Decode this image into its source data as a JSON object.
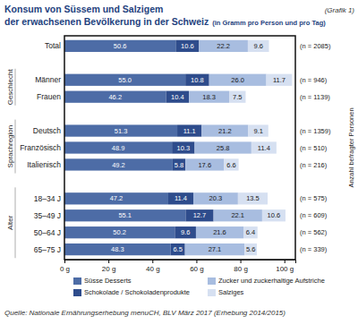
{
  "chart_data": {
    "type": "bar",
    "orientation": "horizontal",
    "stacked": true,
    "data_labels": true,
    "grid": false,
    "legend": "bottom",
    "title": "Konsum von Süssem und Salzigem der erwachsenen Bevölkerung in der Schweiz",
    "subtitle": "(in Gramm pro Person und pro Tag)",
    "figure_label": "(Grafik 1)",
    "source": "Quelle: Nationale Ernährungserhebung menuCH, BLV März 2017 (Erhebung 2014/2015)",
    "categories": [
      "Total",
      "Männer",
      "Frauen",
      "Deutsch",
      "Französisch",
      "Italienisch",
      "18–34 J",
      "35–49 J",
      "50–64 J",
      "65–75 J"
    ],
    "groups": [
      {
        "label": "Geschlecht",
        "categories": [
          "Männer",
          "Frauen"
        ]
      },
      {
        "label": "Sprachregion",
        "categories": [
          "Deutsch",
          "Französisch",
          "Italienisch"
        ]
      },
      {
        "label": "Alter",
        "categories": [
          "18–34 J",
          "35–49 J",
          "50–64 J",
          "65–75 J"
        ]
      }
    ],
    "sample_size_title": "Anzahl befragter Personen",
    "sample_sizes": [
      "(n = 2085)",
      "(n = 946)",
      "(n = 1139)",
      "(n = 1359)",
      "(n = 510)",
      "(n = 216)",
      "(n = 575)",
      "(n = 609)",
      "(n = 562)",
      "(n = 339)"
    ],
    "xlim": [
      0,
      105
    ],
    "xticks": [
      {
        "value": 0,
        "label": "0 g"
      },
      {
        "value": 20,
        "label": "20 g"
      },
      {
        "value": 40,
        "label": "40 g"
      },
      {
        "value": 60,
        "label": "60 g"
      },
      {
        "value": 80,
        "label": "80 g"
      },
      {
        "value": 100,
        "label": "100 g"
      }
    ],
    "series": [
      {
        "name": "Süsse Desserts",
        "color": "#4d6ca6",
        "values": [
          50.6,
          55.0,
          46.2,
          51.3,
          48.9,
          49.2,
          47.2,
          55.1,
          50.2,
          48.3
        ],
        "value_labels": [
          "50.6",
          "55.0",
          "46.2",
          "51.3",
          "48.9",
          "49.2",
          "47.2",
          "55.1",
          "50.2",
          "48.3"
        ]
      },
      {
        "name": "Schokolade / Schokoladenprodukte",
        "color": "#2e4c8c",
        "values": [
          10.6,
          10.8,
          10.4,
          11.1,
          10.3,
          5.8,
          11.4,
          12.7,
          9.6,
          6.5
        ],
        "value_labels": [
          "10.6",
          "10.8",
          "10.4",
          "11.1",
          "10.3",
          "5.8",
          "11.4",
          "12.7",
          "9.6",
          "6.5"
        ]
      },
      {
        "name": "Zucker und zuckerhaltige Aufstriche",
        "color": "#a8bde0",
        "values": [
          22.2,
          26.0,
          18.3,
          21.2,
          25.8,
          17.6,
          20.3,
          22.1,
          21.6,
          27.1
        ],
        "value_labels": [
          "22.2",
          "26.0",
          "18.3",
          "21.2",
          "25.8",
          "17.6",
          "20.3",
          "22.1",
          "21.6",
          "27.1"
        ]
      },
      {
        "name": "Salziges",
        "color": "#d6e0f1",
        "values": [
          9.6,
          11.7,
          7.5,
          9.1,
          11.4,
          6.6,
          13.5,
          10.6,
          6.4,
          5.6
        ],
        "value_labels": [
          "9.6",
          "11.7",
          "7.5",
          "9.1",
          "11.4",
          "6.6",
          "13.5",
          "10.6",
          "6.4",
          "5.6"
        ]
      }
    ]
  }
}
